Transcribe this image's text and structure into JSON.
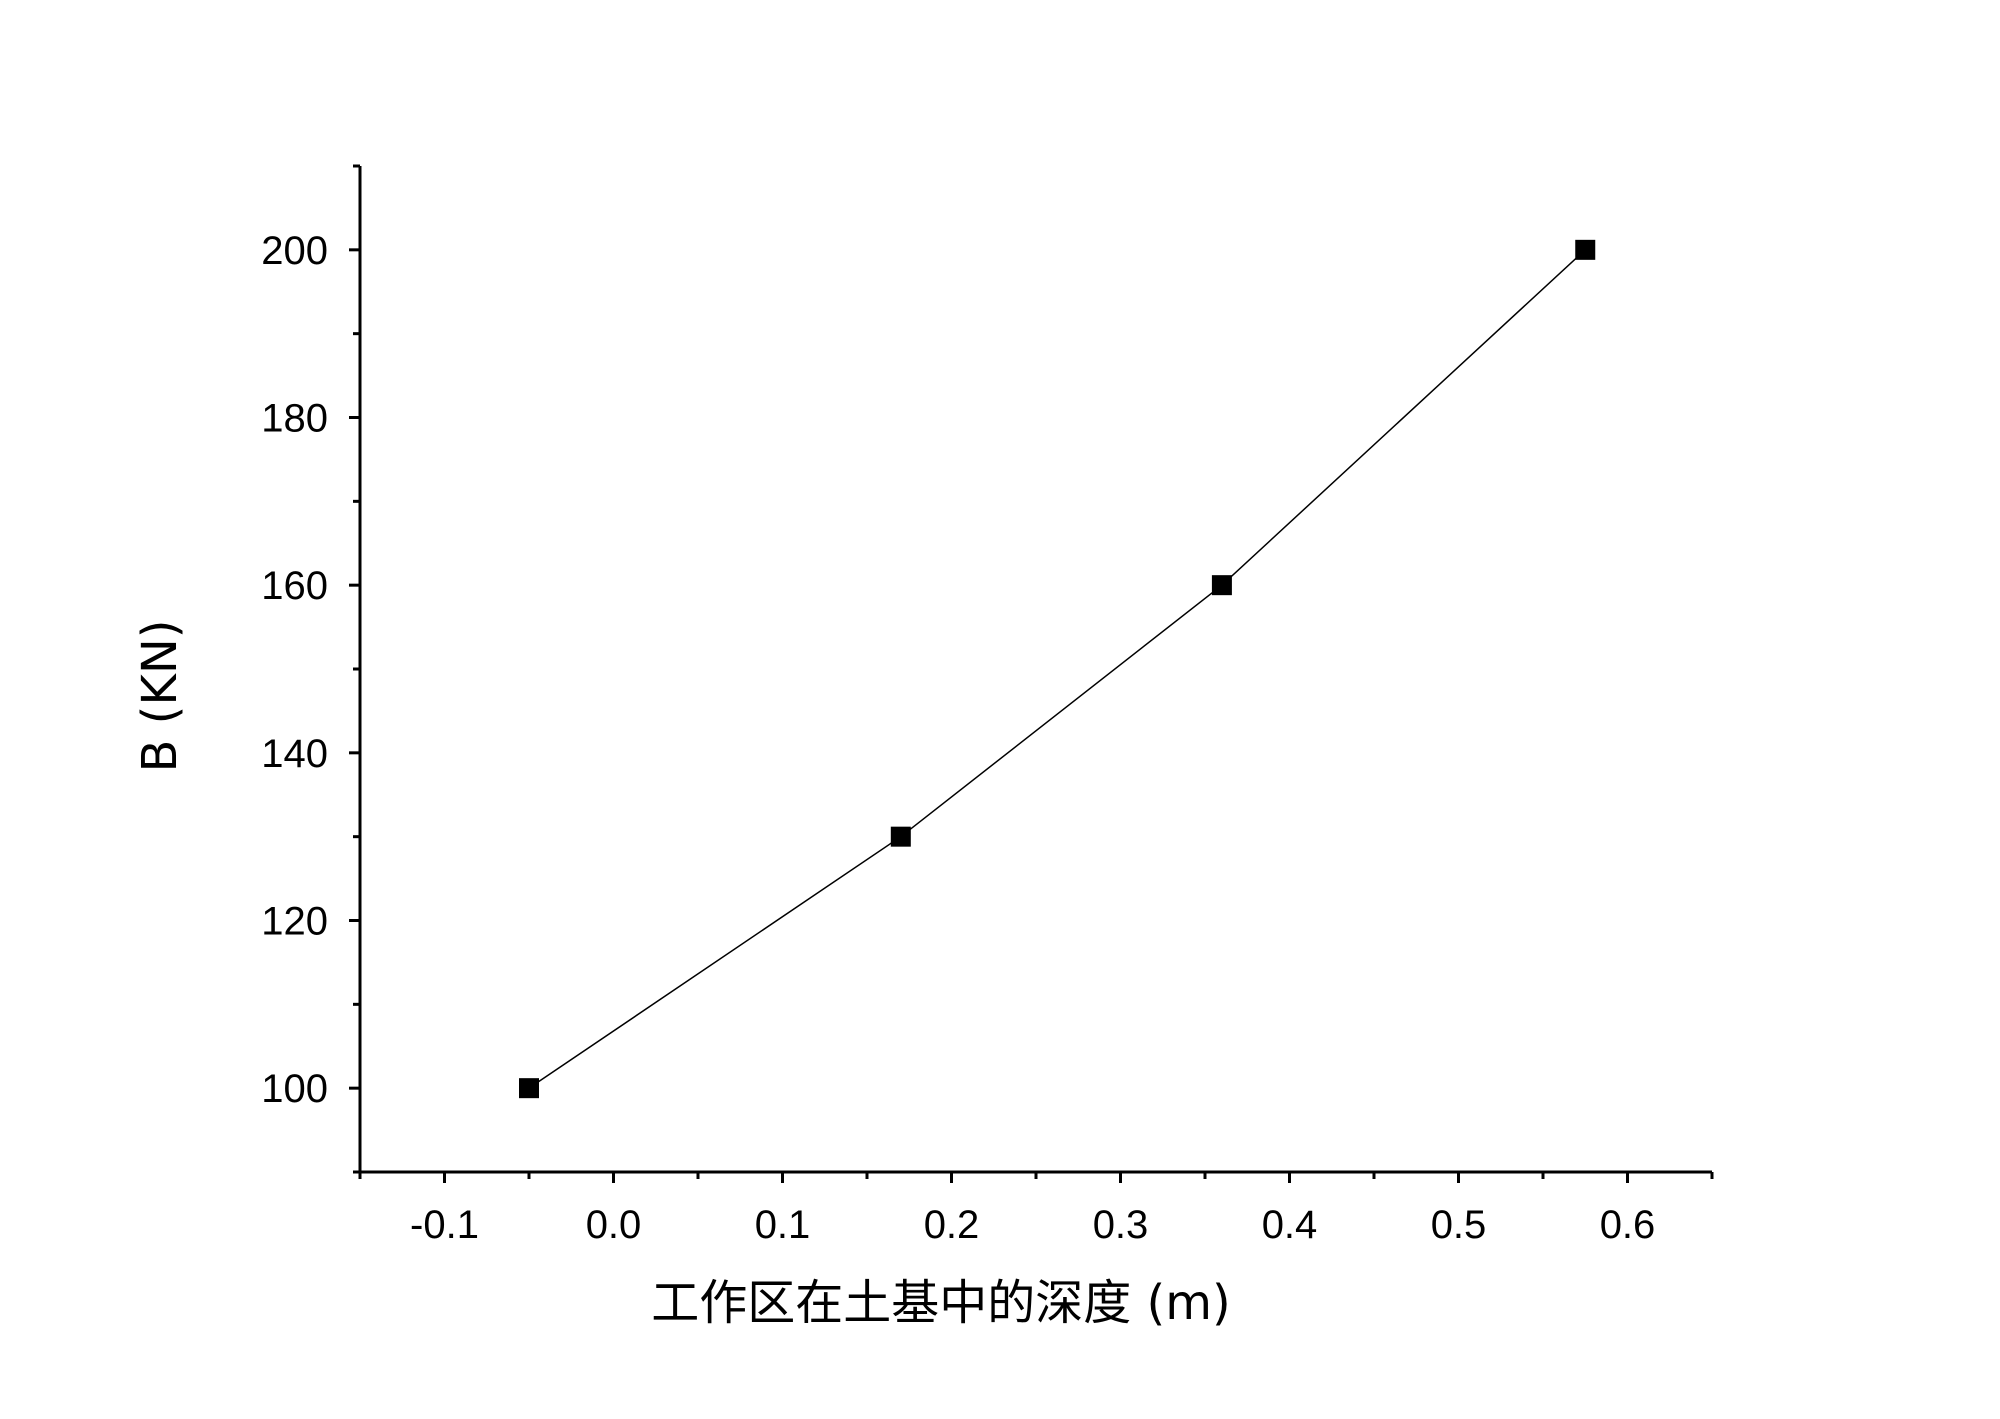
{
  "chart_data": {
    "type": "line",
    "title": "",
    "xlabel": "工作区在土基中的深度 (m)",
    "ylabel": "B (KN)",
    "xlim": [
      -0.15,
      0.65
    ],
    "ylim": [
      90,
      210
    ],
    "x_ticks": [
      -0.1,
      0.0,
      0.1,
      0.2,
      0.3,
      0.4,
      0.5,
      0.6
    ],
    "x_tick_labels": [
      "-0.1",
      "0.0",
      "0.1",
      "0.2",
      "0.3",
      "0.4",
      "0.5",
      "0.6"
    ],
    "y_ticks": [
      100,
      120,
      140,
      160,
      180,
      200
    ],
    "y_tick_labels": [
      "100",
      "120",
      "140",
      "160",
      "180",
      "200"
    ],
    "grid": false,
    "legend": "none",
    "marker": "square",
    "series": [
      {
        "x": [
          -0.05,
          0.17,
          0.36,
          0.575
        ],
        "y": [
          100,
          130,
          160,
          200
        ],
        "color": "#000000"
      }
    ]
  }
}
